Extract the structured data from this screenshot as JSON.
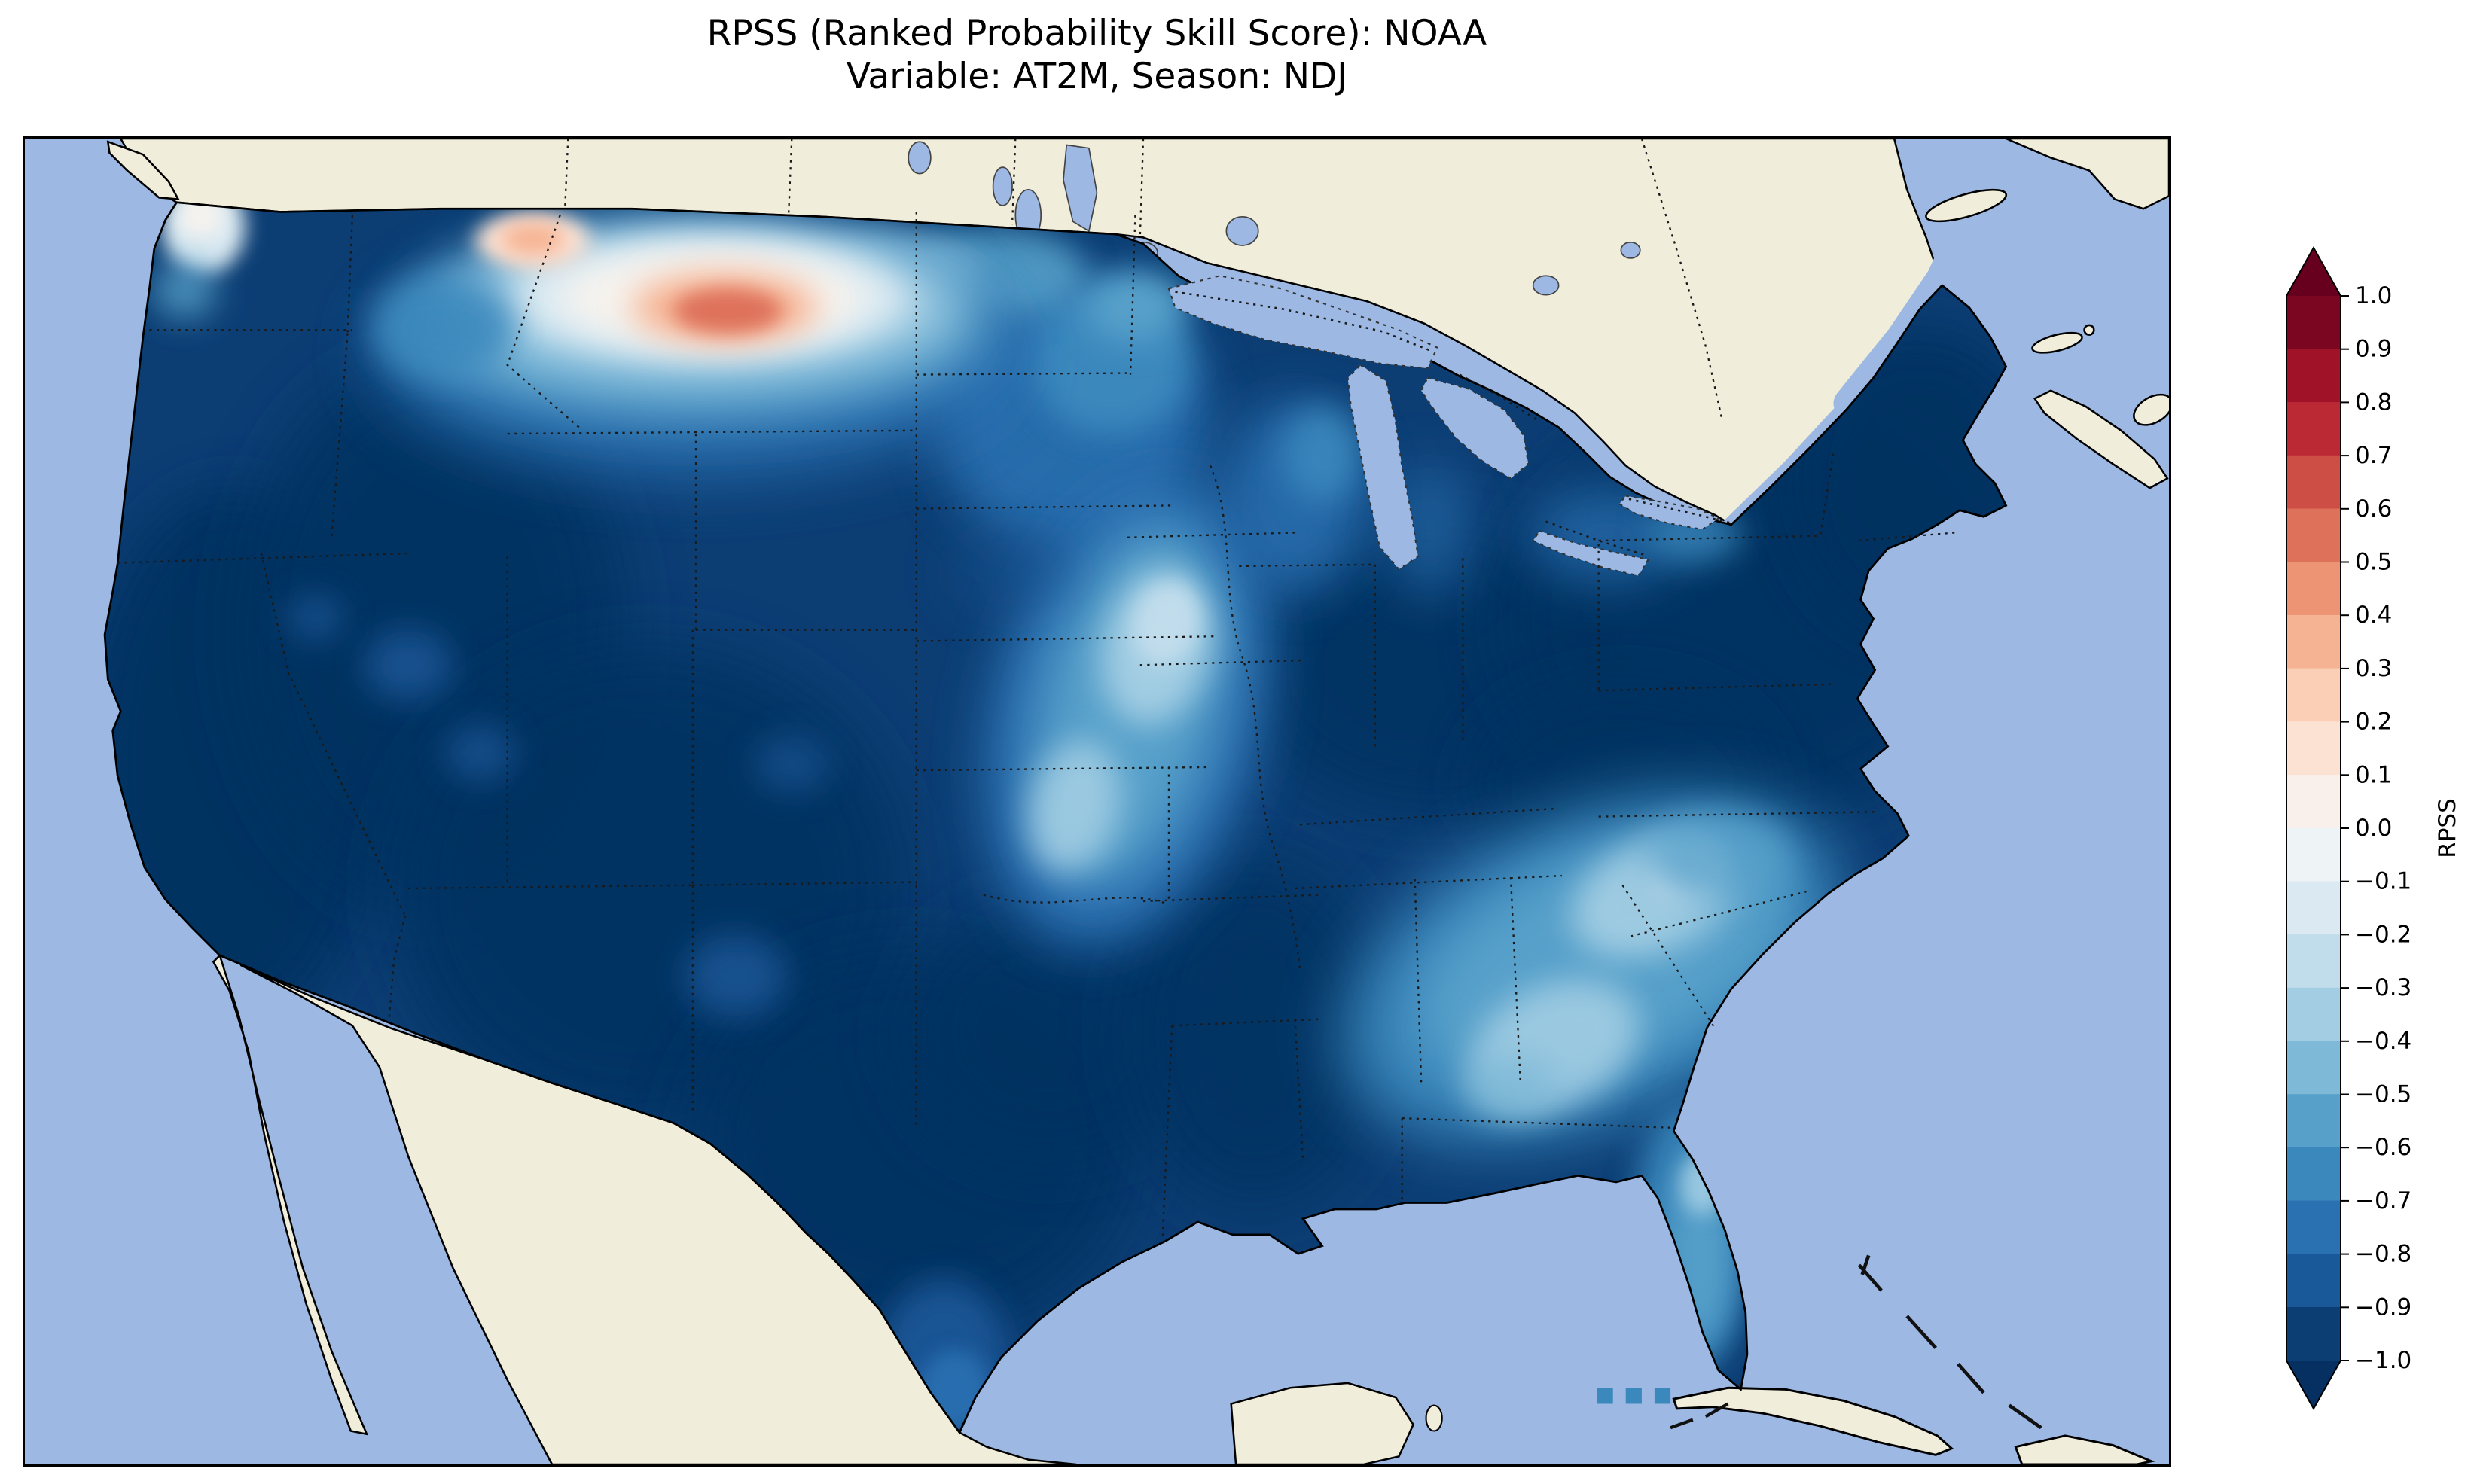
{
  "title": {
    "line1": "RPSS (Ranked Probability Skill Score): NOAA",
    "line2": "Variable: AT2M, Season: NDJ"
  },
  "colorbar": {
    "label": "RPSS",
    "tick_labels": [
      "1.0",
      "0.9",
      "0.8",
      "0.7",
      "0.6",
      "0.5",
      "0.4",
      "0.3",
      "0.2",
      "0.1",
      "0.0",
      "−0.1",
      "−0.2",
      "−0.3",
      "−0.4",
      "−0.5",
      "−0.6",
      "−0.7",
      "−0.8",
      "−0.9",
      "−1.0"
    ],
    "vmin": -1.0,
    "vmax": 1.0,
    "under_color": "#053061",
    "over_color": "#67001f",
    "bin_colors_low_to_high": [
      "#0c3e74",
      "#1a5999",
      "#2a71b2",
      "#3b88bd",
      "#57a0ca",
      "#7eb9d7",
      "#a2cde3",
      "#c1ddec",
      "#dbeaf2",
      "#eef3f5",
      "#f9f0eb",
      "#fce2d3",
      "#fbceb6",
      "#f6b393",
      "#ed9475",
      "#de715a",
      "#cd4e45",
      "#bb2a34",
      "#9f1228",
      "#7a0622"
    ]
  },
  "map_colors": {
    "ocean": "#9db9e3",
    "land": "#f0eddb",
    "lake": "#9db9e3",
    "coastline": "#000000",
    "border_dots": "#1a1a1a"
  },
  "chart_data": {
    "type": "heatmap",
    "title": "RPSS (Ranked Probability Skill Score): NOAA",
    "subtitle": "Variable: AT2M, Season: NDJ",
    "metric": "RPSS (Ranked Probability Skill Score)",
    "model": "NOAA",
    "variable": "AT2M",
    "season": "NDJ",
    "geography": "Contiguous United States shaded; Canada, Mexico and Caribbean shown as unshaded land; oceans and Great Lakes light blue",
    "colormap": "RdBu_r diverging (dark blue = -1.0, white = 0.0, dark red = +1.0), 0.1 bins with extend triangles",
    "value_range": [
      -1.0,
      1.0
    ],
    "colorbar_ticks": [
      1.0,
      0.9,
      0.8,
      0.7,
      0.6,
      0.5,
      0.4,
      0.3,
      0.2,
      0.1,
      0.0,
      -0.1,
      -0.2,
      -0.3,
      -0.4,
      -0.5,
      -0.6,
      -0.7,
      -0.8,
      -0.9,
      -1.0
    ],
    "legend_position": "right",
    "grid": false,
    "regions": [
      {
        "region": "Majority of CONUS (West Coast, Great Basin, Rockies, Texas, Gulf Coast, Ohio Valley, Northeast)",
        "approx_rpss": -0.95
      },
      {
        "region": "Central Montana anomaly core (positive skill patch)",
        "approx_rpss": 0.5
      },
      {
        "region": "Northwest Montana small positive patch",
        "approx_rpss": 0.3
      },
      {
        "region": "Northern Montana / western Dakotas band around anomaly",
        "approx_rpss": 0.0
      },
      {
        "region": "Puget Sound / western Washington coast",
        "approx_rpss": -0.1
      },
      {
        "region": "Minnesota and eastern Dakotas",
        "approx_rpss": -0.55
      },
      {
        "region": "Iowa–Missouri–Illinois diagonal band",
        "approx_rpss": -0.35
      },
      {
        "region": "Wisconsin / western Lake Michigan shore",
        "approx_rpss": -0.6
      },
      {
        "region": "Southeast coastal plain (Carolinas, Georgia, Alabama)",
        "approx_rpss": -0.35
      },
      {
        "region": "Central Florida peninsula",
        "approx_rpss": -0.5
      },
      {
        "region": "Lake Erie / Lake Ontario margins",
        "approx_rpss": -0.65
      },
      {
        "region": "South Texas tip",
        "approx_rpss": -0.7
      },
      {
        "region": "Scattered Nevada / Utah / New Mexico speckles",
        "approx_rpss": -0.8
      }
    ]
  }
}
